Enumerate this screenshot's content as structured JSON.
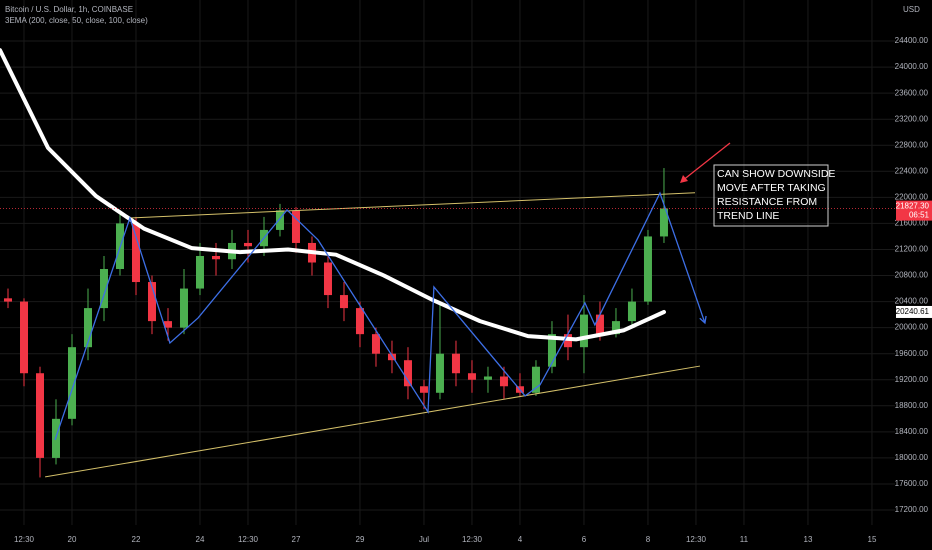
{
  "chart_data": {
    "type": "candlestick",
    "title": "Bitcoin / U.S. Dollar, 1h, COINBASE",
    "indicator": "3EMA (200, close, 50, close, 100, close)",
    "currency": "USD",
    "up_color": "#4caf50",
    "down_color": "#f23645",
    "xlim": [
      17.75,
      45.72
    ],
    "ylim": [
      16970,
      25030
    ],
    "xticks": [
      {
        "value": 18.5,
        "label": "12:30"
      },
      20,
      22,
      24,
      {
        "value": 25.5,
        "label": "12:30"
      },
      27,
      29,
      {
        "value": 31,
        "label": "Jul"
      },
      {
        "value": 32.5,
        "label": "12:30"
      },
      {
        "value": 34,
        "label": "4"
      },
      {
        "value": 36,
        "label": "6"
      },
      {
        "value": 38,
        "label": "8"
      },
      {
        "value": 39.5,
        "label": "12:30"
      },
      {
        "value": 41,
        "label": "11"
      },
      {
        "value": 43,
        "label": "13"
      },
      {
        "value": 45,
        "label": "15"
      }
    ],
    "yticks": [
      {
        "value": 17200,
        "label": "17200.00"
      },
      {
        "value": 17600,
        "label": "17600.00"
      },
      {
        "value": 18000,
        "label": "18000.00"
      },
      {
        "value": 18400,
        "label": "18400.00"
      },
      {
        "value": 18800,
        "label": "18800.00"
      },
      {
        "value": 19200,
        "label": "19200.00"
      },
      {
        "value": 19600,
        "label": "19600.00"
      },
      {
        "value": 20000,
        "label": "20000.00"
      },
      {
        "value": 20400,
        "label": "20400.00"
      },
      {
        "value": 20800,
        "label": "20800.00"
      },
      {
        "value": 21200,
        "label": "21200.00"
      },
      {
        "value": 21600,
        "label": "21600.00"
      },
      {
        "value": 22000,
        "label": "22000.00"
      },
      {
        "value": 22400,
        "label": "22400.00"
      },
      {
        "value": 22800,
        "label": "22800.00"
      },
      {
        "value": 23200,
        "label": "23200.00"
      },
      {
        "value": 23600,
        "label": "23600.00"
      },
      {
        "value": 24000,
        "label": "24000.00"
      },
      {
        "value": 24400,
        "label": "24400.00"
      }
    ],
    "grid": true,
    "candles": {
      "x": [
        18,
        18.5,
        19,
        19.5,
        20,
        20.5,
        21,
        21.5,
        22,
        22.5,
        23,
        23.5,
        24,
        24.5,
        25,
        25.5,
        26,
        26.5,
        27,
        27.5,
        28,
        28.5,
        29,
        29.5,
        30,
        30.5,
        31,
        31.5,
        32,
        32.5,
        33,
        33.5,
        34,
        34.5,
        35,
        35.5,
        36,
        36.5,
        37,
        37.5,
        38,
        38.5
      ],
      "open": [
        20450,
        20400,
        19300,
        18000,
        18600,
        19700,
        20300,
        20900,
        21600,
        20700,
        20100,
        20000,
        20600,
        21100,
        21050,
        21300,
        21250,
        21500,
        21800,
        21300,
        21000,
        20500,
        20300,
        19900,
        19600,
        19500,
        19100,
        19000,
        19600,
        19300,
        19200,
        19250,
        19100,
        19000,
        19400,
        19900,
        19700,
        20200,
        19900,
        20100,
        20400,
        21400
      ],
      "high": [
        20600,
        20450,
        19400,
        18900,
        19900,
        20600,
        21100,
        21800,
        21700,
        20800,
        20300,
        20900,
        21300,
        21300,
        21500,
        21500,
        21700,
        21900,
        21850,
        21400,
        21100,
        20700,
        20400,
        20000,
        19800,
        19700,
        19200,
        20400,
        19800,
        19500,
        19400,
        19400,
        19300,
        19500,
        20100,
        20200,
        20500,
        20400,
        20300,
        20600,
        21500,
        22450
      ],
      "low": [
        20300,
        19100,
        17700,
        17900,
        18500,
        19500,
        20100,
        20800,
        20500,
        19900,
        19800,
        19900,
        20500,
        20800,
        20900,
        21000,
        21100,
        21400,
        21150,
        20800,
        20300,
        20100,
        19700,
        19400,
        19300,
        18900,
        18750,
        18900,
        19100,
        19000,
        19000,
        18900,
        18950,
        18950,
        19300,
        19500,
        19300,
        19800,
        19850,
        20000,
        20350,
        21300
      ],
      "close": [
        20400,
        19300,
        18000,
        18600,
        19700,
        20300,
        20900,
        21600,
        20700,
        20100,
        20000,
        20600,
        21100,
        21050,
        21300,
        21250,
        21500,
        21800,
        21300,
        21000,
        20500,
        20300,
        19900,
        19600,
        19500,
        19100,
        19000,
        19600,
        19300,
        19200,
        19250,
        19100,
        19000,
        19400,
        19900,
        19700,
        20200,
        19900,
        20100,
        20400,
        21400,
        21830
      ]
    },
    "ema": {
      "color": "#ffffff",
      "x": [
        17.75,
        19.25,
        20.75,
        22.25,
        23.75,
        25.25,
        26.75,
        28.25,
        29.75,
        31.25,
        32.75,
        34.25,
        35.75,
        37.25,
        38.5
      ],
      "values": [
        24260,
        22760,
        22020,
        21520,
        21220,
        21160,
        21200,
        21120,
        20800,
        20430,
        20100,
        19870,
        19820,
        19960,
        20240
      ]
    },
    "ema_label": {
      "value": 20240.61,
      "label": "20240.61"
    },
    "last_price": {
      "value": 21827.3,
      "label": "21827.30"
    },
    "countdown": "06:51",
    "trend_lines": [
      {
        "color": "#d4c06a",
        "x": [
          21.81,
          39.47
        ],
        "y": [
          21684,
          22070
        ]
      },
      {
        "color": "#d4c06a",
        "x": [
          19.16,
          39.625
        ],
        "y": [
          17708,
          19410
        ]
      }
    ],
    "zigzag": {
      "color": "#3d6fe6",
      "x": [
        19.47,
        21.81,
        23.06,
        23.94,
        26.72,
        27.69,
        31.125,
        31.31,
        34.16,
        34.625,
        36.03,
        36.34,
        38.375,
        39.78
      ],
      "y": [
        18276,
        21684,
        19765,
        20149,
        21807,
        21346,
        18706,
        20624,
        18952,
        19120,
        20379,
        20041,
        22067,
        20072
      ]
    },
    "annotation": [
      "CAN SHOW DOWNSIDE",
      "MOVE AFTER TAKING",
      "RESISTANCE FROM",
      "TREND LINE"
    ]
  }
}
